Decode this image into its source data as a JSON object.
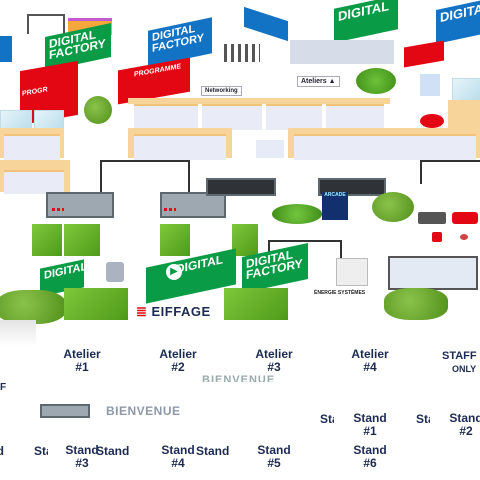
{
  "signs": {
    "digital_factory": "DIGITAL FACTORY",
    "digital": "DIGITAL",
    "factory": "FACTORY",
    "programme": "PROGRAMME",
    "prog": "PROGR",
    "networking": "Networking",
    "ateliers": "Ateliers ▲",
    "bienvenue_top": "BIENVENUE",
    "bienvenue": "BIENVENUE"
  },
  "brands": {
    "eiffage": "EIFFAGE",
    "energie": "ÉNERGIE SYSTÈMES",
    "arcade": "ARCADE"
  },
  "ateliers": [
    {
      "line1": "Atelier",
      "line2": "#1"
    },
    {
      "line1": "Atelier",
      "line2": "#2"
    },
    {
      "line1": "Atelier",
      "line2": "#3"
    },
    {
      "line1": "Atelier",
      "line2": "#4"
    }
  ],
  "staff": {
    "line1": "STAFF",
    "line2": "ONLY"
  },
  "stands": [
    {
      "line1": "Stand",
      "line2": "#1"
    },
    {
      "line1": "Stand",
      "line2": "#2"
    },
    {
      "line1": "Stand",
      "line2": "#3"
    },
    {
      "line1": "Stand",
      "line2": "#4"
    },
    {
      "line1": "Stand",
      "line2": "#5"
    },
    {
      "line1": "Stand",
      "line2": "#6"
    }
  ],
  "ghost_labels": {
    "stand": "Stand",
    "f": "F"
  },
  "colors": {
    "label": "#1b2b53",
    "green": "#0a9b47",
    "blue": "#1273c4",
    "red": "#e30613"
  }
}
